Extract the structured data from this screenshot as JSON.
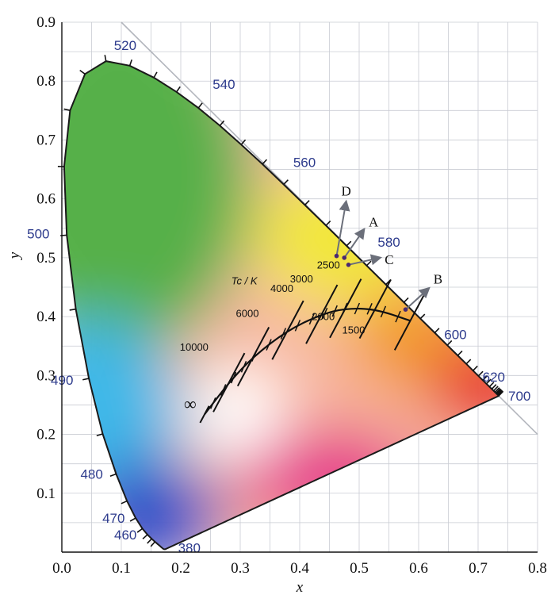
{
  "chart_data": {
    "type": "scatter",
    "xlabel": "x",
    "ylabel": "y",
    "xlim": [
      0.0,
      0.8
    ],
    "ylim": [
      0.0,
      0.9
    ],
    "x_ticks": [
      "0.0",
      "0.1",
      "0.2",
      "0.3",
      "0.4",
      "0.5",
      "0.6",
      "0.7",
      "0.8"
    ],
    "y_ticks": [
      "0.1",
      "0.2",
      "0.3",
      "0.4",
      "0.5",
      "0.6",
      "0.7",
      "0.8",
      "0.9"
    ],
    "grid": true,
    "spectral_locus": [
      {
        "nm": "380",
        "x": 0.1741,
        "y": 0.005
      },
      {
        "nm": "460",
        "x": 0.144,
        "y": 0.0297
      },
      {
        "nm": "470",
        "x": 0.1241,
        "y": 0.0578
      },
      {
        "nm": "480",
        "x": 0.0913,
        "y": 0.1327
      },
      {
        "nm": "490",
        "x": 0.0454,
        "y": 0.295
      },
      {
        "nm": "500",
        "x": 0.0082,
        "y": 0.5384
      },
      {
        "nm": "520",
        "x": 0.0743,
        "y": 0.8338
      },
      {
        "nm": "540",
        "x": 0.2296,
        "y": 0.7543
      },
      {
        "nm": "560",
        "x": 0.3731,
        "y": 0.6245
      },
      {
        "nm": "580",
        "x": 0.5125,
        "y": 0.4866
      },
      {
        "nm": "600",
        "x": 0.627,
        "y": 0.3725
      },
      {
        "nm": "620",
        "x": 0.6915,
        "y": 0.3083
      },
      {
        "nm": "700",
        "x": 0.7347,
        "y": 0.2653
      }
    ],
    "planckian_locus_label": "Tc / K",
    "planckian_locus": [
      {
        "T": "∞",
        "x": 0.24,
        "y": 0.234
      },
      {
        "T": "10000",
        "x": 0.281,
        "y": 0.288
      },
      {
        "T": "6000",
        "x": 0.322,
        "y": 0.332
      },
      {
        "T": "4000",
        "x": 0.38,
        "y": 0.377
      },
      {
        "T": "3000",
        "x": 0.437,
        "y": 0.404
      },
      {
        "T": "2500",
        "x": 0.477,
        "y": 0.414
      },
      {
        "T": "2000",
        "x": 0.527,
        "y": 0.413
      },
      {
        "T": "1500",
        "x": 0.586,
        "y": 0.393
      }
    ],
    "points": [
      {
        "label": "A",
        "x": 0.475,
        "y": 0.5
      },
      {
        "label": "B",
        "x": 0.578,
        "y": 0.412
      },
      {
        "label": "C",
        "x": 0.482,
        "y": 0.488
      },
      {
        "label": "D",
        "x": 0.462,
        "y": 0.503
      }
    ]
  }
}
